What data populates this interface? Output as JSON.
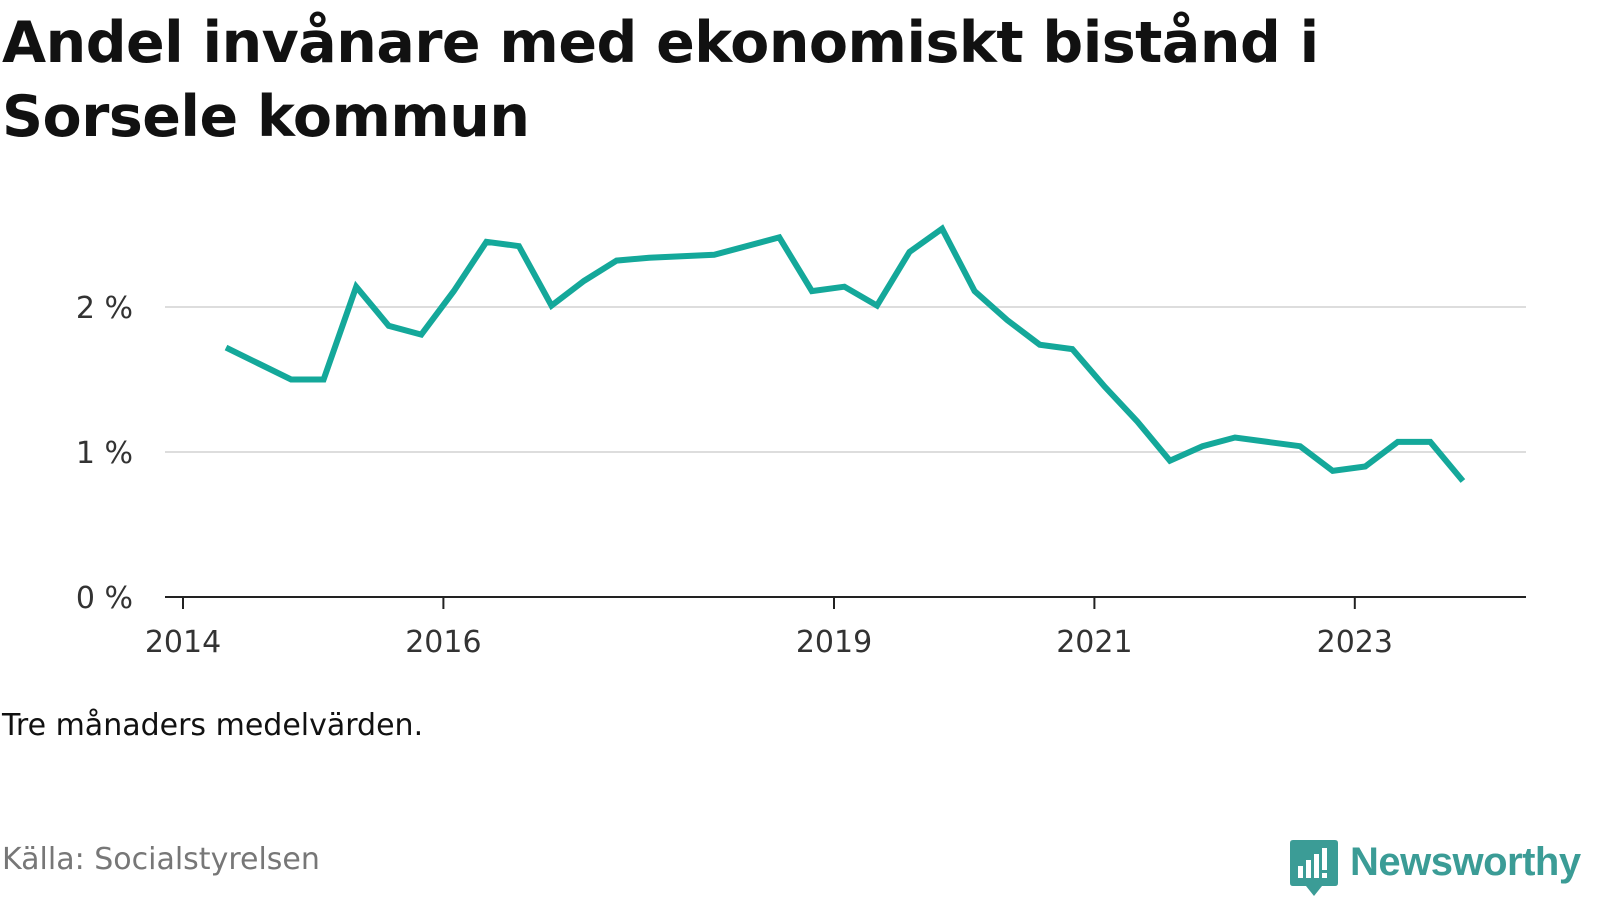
{
  "title": "Andel invånare med ekonomiskt bistånd i Sorsele kommun",
  "note": "Tre månaders medelvärden.",
  "source": "Källa: Socialstyrelsen",
  "brand": {
    "name": "Newsworthy",
    "color": "#3b9c96",
    "icon": "bar-chart-speech-bubble-icon"
  },
  "colors": {
    "line": "#14a89a",
    "grid": "#dddddd",
    "axis": "#222222",
    "tick_label": "#333333"
  },
  "chart_data": {
    "type": "line",
    "title": "Andel invånare med ekonomiskt bistånd i Sorsele kommun",
    "xlabel": "",
    "ylabel": "",
    "x_range": [
      2014,
      2024.3
    ],
    "ylim": [
      0,
      2.5
    ],
    "y_ticks": [
      0,
      1,
      2
    ],
    "y_tick_labels": [
      "0 %",
      "1 %",
      "2 %"
    ],
    "x_ticks": [
      2014,
      2016,
      2019,
      2021,
      2023
    ],
    "x_tick_labels": [
      "2014",
      "2016",
      "2019",
      "2021",
      "2023"
    ],
    "grid": "horizontal",
    "series": [
      {
        "x": [
          2014.33,
          2014.58,
          2014.83,
          2015.08,
          2015.33,
          2015.58,
          2015.83,
          2016.08,
          2016.33,
          2016.58,
          2016.83,
          2017.08,
          2017.33,
          2017.58,
          2018.08,
          2018.58,
          2018.83,
          2019.08,
          2019.33,
          2019.58,
          2019.83,
          2020.08,
          2020.33,
          2020.58,
          2020.83,
          2021.08,
          2021.33,
          2021.58,
          2021.83,
          2022.08,
          2022.33,
          2022.58,
          2022.83,
          2023.08,
          2023.33,
          2023.58,
          2023.83
        ],
        "y": [
          1.72,
          1.61,
          1.5,
          1.5,
          2.14,
          1.87,
          1.81,
          2.11,
          2.45,
          2.42,
          2.01,
          2.18,
          2.32,
          2.34,
          2.36,
          2.48,
          2.11,
          2.14,
          2.01,
          2.38,
          2.54,
          2.11,
          1.91,
          1.74,
          1.71,
          1.45,
          1.21,
          0.94,
          1.04,
          1.1,
          1.07,
          1.04,
          0.87,
          0.9,
          1.07,
          1.07,
          0.8
        ]
      }
    ]
  }
}
